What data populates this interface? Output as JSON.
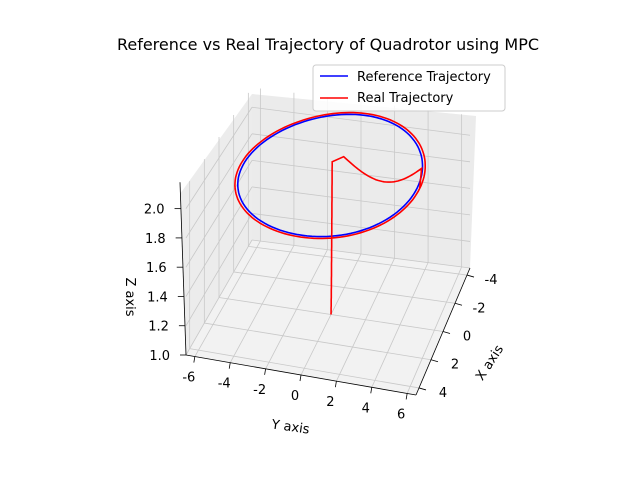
{
  "chart_data": {
    "type": "line",
    "projection": "3d",
    "title": "Reference vs Real Trajectory of Quadrotor using MPC",
    "xlabel": "X axis",
    "ylabel": "Y axis",
    "zlabel": "Z axis",
    "xlim": [
      -4.5,
      4.5
    ],
    "ylim": [
      -6.5,
      6.5
    ],
    "zlim": [
      1.0,
      2.1
    ],
    "xticks": [
      "-4",
      "-2",
      "0",
      "2",
      "4"
    ],
    "yticks": [
      "-6",
      "-4",
      "-2",
      "0",
      "2",
      "4",
      "6"
    ],
    "zticks": [
      "1.0",
      "1.2",
      "1.4",
      "1.6",
      "1.8",
      "2.0"
    ],
    "grid": true,
    "legend": "upper-right",
    "series": [
      {
        "name": "Reference Trajectory",
        "color": "#0000ff",
        "shape": "circle",
        "center": [
          0,
          0
        ],
        "radius": 5,
        "z": 2.0
      },
      {
        "name": "Real Trajectory",
        "color": "#ff0000",
        "start": [
          0,
          0,
          1.0
        ],
        "end_on_circle": true,
        "z_plateau": 2.0
      }
    ]
  }
}
